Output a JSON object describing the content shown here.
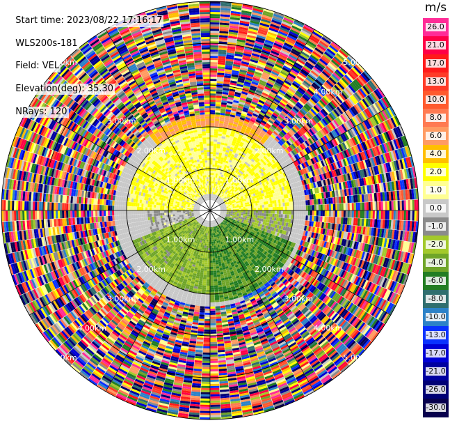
{
  "header": {
    "start_time": "Start time: 2023/08/22 17:16:17",
    "station": "WLS200s-181",
    "field": "Field: VEL",
    "elevation": "Elevation(deg): 35.30",
    "nrays": "NRays: 120"
  },
  "colorbar": {
    "unit": "m/s",
    "labels": [
      "26.0",
      "21.0",
      "17.0",
      "13.0",
      "10.0",
      "8.0",
      "6.0",
      "4.0",
      "2.0",
      "1.0",
      "0.0",
      "-1.0",
      "-2.0",
      "-4.0",
      "-6.0",
      "-8.0",
      "-10.0",
      "-13.0",
      "-17.0",
      "-21.0",
      "-26.0",
      "-30.0"
    ],
    "colors": [
      "#ff2c97",
      "#ff0046",
      "#ff1a1a",
      "#ff3b28",
      "#ff5a2e",
      "#ff7a52",
      "#ff9b62",
      "#ffbf00",
      "#ffff00",
      "#ffff93",
      "#c8c8c8",
      "#8b8b8b",
      "#a3c92b",
      "#6fa528",
      "#227d22",
      "#2f6e6e",
      "#2c82c8",
      "#0a32ff",
      "#0000d6",
      "#0000a0",
      "#000075",
      "#08014d"
    ]
  },
  "chart_data": {
    "type": "heatmap",
    "projection": "polar PPI",
    "field": "VEL",
    "units": "m/s",
    "nrays": 120,
    "elevation_deg": 35.3,
    "range_ring_labels": [
      "1.00km",
      "2.00km",
      "3.00km",
      "4.00km",
      "5.00km"
    ],
    "max_range_km": 5.0,
    "color_scale": [
      -30.0,
      -26.0,
      -21.0,
      -17.0,
      -13.0,
      -10.0,
      -8.0,
      -6.0,
      -4.0,
      -2.0,
      -1.0,
      0.0,
      1.0,
      2.0,
      4.0,
      6.0,
      8.0,
      10.0,
      13.0,
      17.0,
      21.0,
      26.0
    ],
    "sectors": [
      {
        "azimuth_from_deg": 270,
        "azimuth_to_deg": 90,
        "range_km": [
          0.4,
          2.0
        ],
        "value": 2.0
      },
      {
        "azimuth_from_deg": 320,
        "azimuth_to_deg": 40,
        "range_km": [
          2.0,
          3.0
        ],
        "value": 6.0
      },
      {
        "azimuth_from_deg": 40,
        "azimuth_to_deg": 110,
        "range_km": [
          0.4,
          2.0
        ],
        "value": -1.0
      },
      {
        "azimuth_from_deg": 110,
        "azimuth_to_deg": 180,
        "range_km": [
          0.4,
          2.2
        ],
        "value": -4.0
      },
      {
        "azimuth_from_deg": 130,
        "azimuth_to_deg": 160,
        "range_km": [
          1.5,
          2.7
        ],
        "value": -10.0
      },
      {
        "azimuth_from_deg": 180,
        "azimuth_to_deg": 250,
        "range_km": [
          0.4,
          2.0
        ],
        "value": -2.0
      },
      {
        "azimuth_from_deg": 250,
        "azimuth_to_deg": 290,
        "range_km": [
          0.4,
          1.5
        ],
        "value": 0.0
      }
    ],
    "outer_noise_range_km": [
      2.3,
      5.0
    ]
  }
}
